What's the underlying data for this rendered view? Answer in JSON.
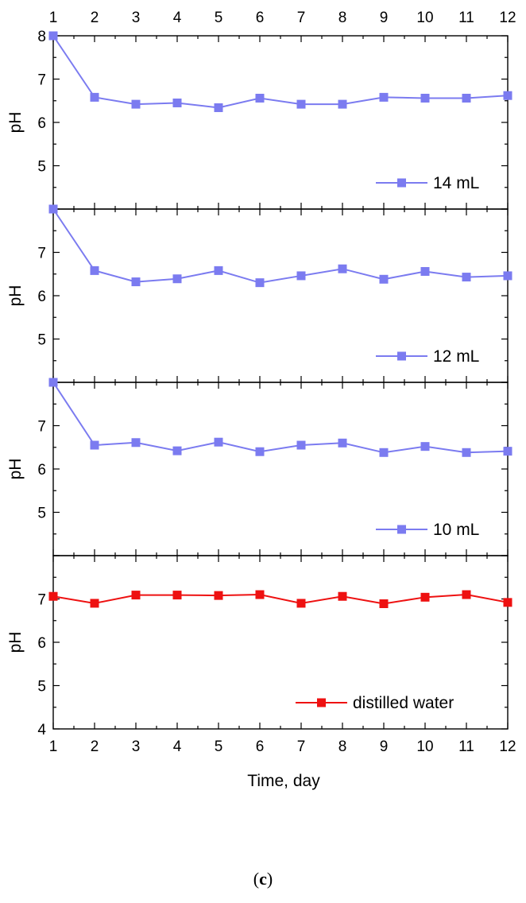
{
  "chart_data": {
    "type": "line",
    "x": [
      1,
      2,
      3,
      4,
      5,
      6,
      7,
      8,
      9,
      10,
      11,
      12
    ],
    "x_ticks": [
      "1",
      "2",
      "3",
      "4",
      "5",
      "6",
      "7",
      "8",
      "9",
      "10",
      "11",
      "12"
    ],
    "xlabel": "Time, day",
    "xlim": [
      1,
      12
    ],
    "caption_open": "(",
    "caption_letter": "c",
    "caption_close": ")",
    "panels": [
      {
        "ylabel": "pH",
        "ylim": [
          4,
          8
        ],
        "y_ticks": [
          "5",
          "6",
          "7",
          "8"
        ],
        "series": [
          {
            "name": "14 mL",
            "color": "#7b7bf0",
            "values": [
              8.0,
              6.58,
              6.42,
              6.45,
              6.34,
              6.56,
              6.42,
              6.42,
              6.58,
              6.56,
              6.56,
              6.62
            ]
          }
        ]
      },
      {
        "ylabel": "pH",
        "ylim": [
          4,
          8
        ],
        "y_ticks": [
          "5",
          "6",
          "7"
        ],
        "series": [
          {
            "name": "12 mL",
            "color": "#7b7bf0",
            "values": [
              8.0,
              6.58,
              6.32,
              6.39,
              6.58,
              6.3,
              6.46,
              6.62,
              6.38,
              6.56,
              6.43,
              6.46
            ]
          }
        ]
      },
      {
        "ylabel": "pH",
        "ylim": [
          4,
          8
        ],
        "y_ticks": [
          "5",
          "6",
          "7"
        ],
        "series": [
          {
            "name": "10 mL",
            "color": "#7b7bf0",
            "values": [
              8.0,
              6.55,
              6.61,
              6.42,
              6.62,
              6.4,
              6.55,
              6.6,
              6.38,
              6.52,
              6.38,
              6.41
            ]
          }
        ]
      },
      {
        "ylabel": "pH",
        "ylim": [
          4,
          8
        ],
        "y_ticks": [
          "4",
          "5",
          "6",
          "7"
        ],
        "series": [
          {
            "name": "distilled water",
            "color": "#ee1111",
            "values": [
              7.06,
              6.9,
              7.09,
              7.09,
              7.08,
              7.1,
              6.9,
              7.06,
              6.89,
              7.04,
              7.1,
              6.92
            ]
          }
        ]
      }
    ]
  }
}
